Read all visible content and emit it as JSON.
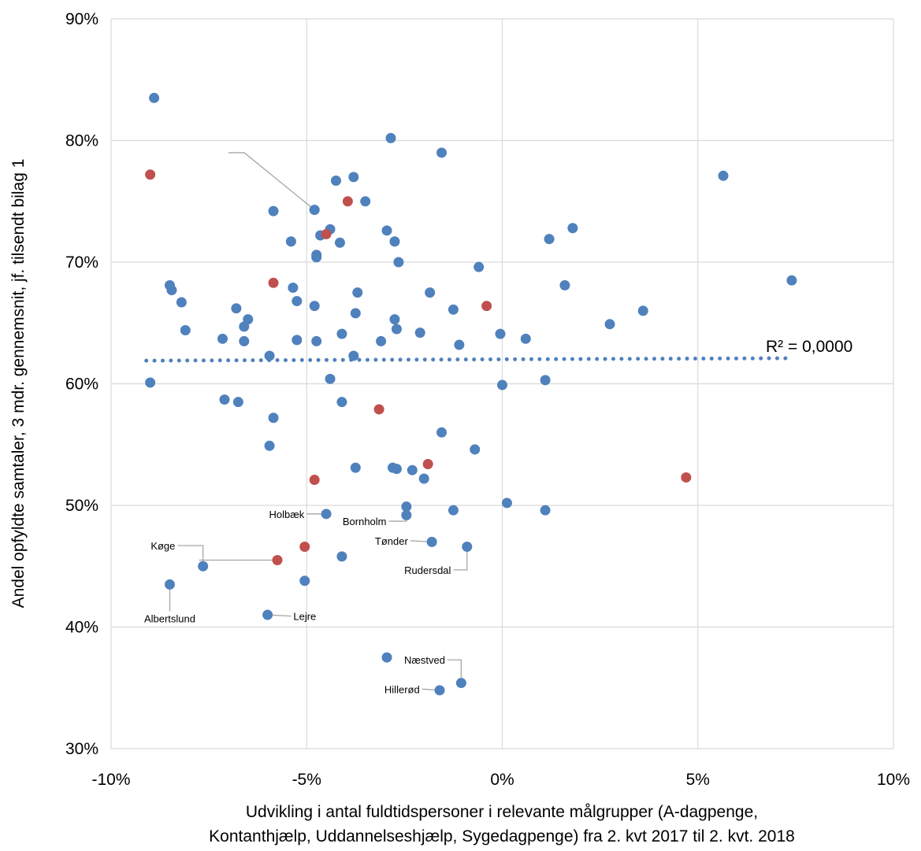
{
  "chart_data": {
    "type": "scatter",
    "title": "",
    "xlabel_lines": [
      "Udvikling i antal fuldtidspersoner i relevante målgrupper (A-dagpenge,",
      "Kontanthjælp, Uddannelseshjælp, Sygedagpenge) fra 2. kvt 2017 til 2. kvt. 2018"
    ],
    "ylabel": "Andel opfyldte samtaler, 3 mdr. gennemsnit, jf. tilsendt bilag 1",
    "xlim": [
      -10,
      10
    ],
    "ylim": [
      30,
      90
    ],
    "x_ticks": [
      -10,
      -5,
      0,
      5,
      10
    ],
    "x_tick_labels": [
      "-10%",
      "-5%",
      "0%",
      "5%",
      "10%"
    ],
    "y_ticks": [
      30,
      40,
      50,
      60,
      70,
      80,
      90
    ],
    "y_tick_labels": [
      "30%",
      "40%",
      "50%",
      "60%",
      "70%",
      "80%",
      "90%"
    ],
    "grid": true,
    "colors": {
      "blue": "#4f81bd",
      "red": "#c0504d",
      "grid": "#d9d9d9",
      "leader": "#a6a6a6"
    },
    "trendline": {
      "type": "linear",
      "style": "dotted",
      "x": [
        -9.1,
        7.4
      ],
      "y": [
        61.9,
        62.1
      ],
      "label": "R² = 0,0000"
    },
    "series": [
      {
        "color": "#4f81bd",
        "points": [
          [
            -8.9,
            83.5
          ],
          [
            -9.0,
            60.1
          ],
          [
            -8.5,
            68.1
          ],
          [
            -8.45,
            67.7
          ],
          [
            -8.2,
            66.7
          ],
          [
            -8.1,
            64.4
          ],
          [
            -7.15,
            63.7
          ],
          [
            -7.1,
            58.7
          ],
          [
            -6.8,
            66.2
          ],
          [
            -6.75,
            58.5
          ],
          [
            -6.6,
            64.7
          ],
          [
            -6.6,
            63.5
          ],
          [
            -6.5,
            65.3
          ],
          [
            -5.85,
            74.2
          ],
          [
            -5.95,
            62.3
          ],
          [
            -5.85,
            57.2
          ],
          [
            -5.95,
            54.9
          ],
          [
            -5.4,
            71.7
          ],
          [
            -5.35,
            67.9
          ],
          [
            -5.25,
            66.8
          ],
          [
            -5.25,
            63.6
          ],
          [
            -4.8,
            74.3
          ],
          [
            -4.8,
            66.4
          ],
          [
            -4.75,
            70.6
          ],
          [
            -4.75,
            70.4
          ],
          [
            -4.65,
            72.2
          ],
          [
            -4.75,
            63.5
          ],
          [
            -4.4,
            72.7
          ],
          [
            -4.4,
            60.4
          ],
          [
            -4.25,
            76.7
          ],
          [
            -4.15,
            71.6
          ],
          [
            -4.1,
            64.1
          ],
          [
            -4.1,
            58.5
          ],
          [
            -3.8,
            77.0
          ],
          [
            -3.7,
            67.5
          ],
          [
            -3.75,
            65.8
          ],
          [
            -3.8,
            62.3
          ],
          [
            -3.75,
            53.1
          ],
          [
            -3.5,
            75.0
          ],
          [
            -3.1,
            63.5
          ],
          [
            -2.95,
            72.6
          ],
          [
            -2.85,
            80.2
          ],
          [
            -2.75,
            71.7
          ],
          [
            -2.75,
            65.3
          ],
          [
            -2.7,
            64.5
          ],
          [
            -2.65,
            70.0
          ],
          [
            -2.8,
            53.1
          ],
          [
            -2.7,
            53.0
          ],
          [
            -2.3,
            52.9
          ],
          [
            -2.1,
            64.2
          ],
          [
            -2.0,
            52.2
          ],
          [
            -1.85,
            67.5
          ],
          [
            -1.55,
            79.0
          ],
          [
            -1.55,
            56.0
          ],
          [
            -1.25,
            66.1
          ],
          [
            -1.1,
            63.2
          ],
          [
            -0.7,
            54.6
          ],
          [
            -0.6,
            69.6
          ],
          [
            -0.05,
            64.1
          ],
          [
            0.0,
            59.9
          ],
          [
            0.6,
            63.7
          ],
          [
            1.2,
            71.9
          ],
          [
            1.1,
            60.3
          ],
          [
            1.6,
            68.1
          ],
          [
            1.8,
            72.8
          ],
          [
            2.75,
            64.9
          ],
          [
            3.6,
            66.0
          ],
          [
            5.65,
            77.1
          ],
          [
            7.4,
            68.5
          ],
          [
            0.12,
            50.2
          ],
          [
            1.1,
            49.6
          ],
          [
            -1.25,
            49.6
          ],
          [
            -2.45,
            49.9
          ],
          [
            -4.1,
            45.8
          ],
          [
            -5.05,
            43.8
          ],
          [
            -2.95,
            37.5
          ]
        ]
      },
      {
        "color": "#c0504d",
        "points": [
          [
            -9.0,
            77.2
          ],
          [
            -5.85,
            68.3
          ],
          [
            -4.5,
            72.3
          ],
          [
            -3.95,
            75.0
          ],
          [
            -3.15,
            57.9
          ],
          [
            -1.9,
            53.4
          ],
          [
            -0.4,
            66.4
          ],
          [
            -4.8,
            52.1
          ],
          [
            -5.05,
            46.6
          ],
          [
            4.7,
            52.3
          ]
        ]
      }
    ],
    "labeled_points": [
      {
        "label": "",
        "color": "#4f81bd",
        "x": -4.8,
        "y": 74.3,
        "label_x": -7.0,
        "label_y": 79.0
      },
      {
        "label": "Holbæk",
        "color": "#4f81bd",
        "x": -4.5,
        "y": 49.3,
        "label_x": -5.0,
        "label_y": 49.3
      },
      {
        "label": "Bornholm",
        "color": "#4f81bd",
        "x": -2.45,
        "y": 49.2,
        "label_x": -2.9,
        "label_y": 48.7
      },
      {
        "label": "Tønder",
        "color": "#4f81bd",
        "x": -1.8,
        "y": 47.0,
        "label_x": -2.35,
        "label_y": 47.1
      },
      {
        "label": "Rudersdal",
        "color": "#4f81bd",
        "x": -0.9,
        "y": 46.6,
        "label_x": -1.25,
        "label_y": 44.7
      },
      {
        "label": "Køge",
        "color": "#4f81bd",
        "x": -7.65,
        "y": 45.0,
        "label_x": -8.3,
        "label_y": 46.7
      },
      {
        "label": "",
        "color": "#c0504d",
        "x": -5.75,
        "y": 45.5,
        "label_x": -7.75,
        "label_y": 45.5
      },
      {
        "label": "Albertslund",
        "color": "#4f81bd",
        "x": -8.5,
        "y": 43.5,
        "label_x": -8.5,
        "label_y": 41.3
      },
      {
        "label": "Lejre",
        "color": "#4f81bd",
        "x": -6.0,
        "y": 41.0,
        "label_x": -5.4,
        "label_y": 40.9
      },
      {
        "label": "Næstved",
        "color": "#4f81bd",
        "x": -1.05,
        "y": 35.4,
        "label_x": -1.4,
        "label_y": 37.3
      },
      {
        "label": "Hillerød",
        "color": "#4f81bd",
        "x": -1.6,
        "y": 34.8,
        "label_x": -2.05,
        "label_y": 34.9
      }
    ]
  }
}
